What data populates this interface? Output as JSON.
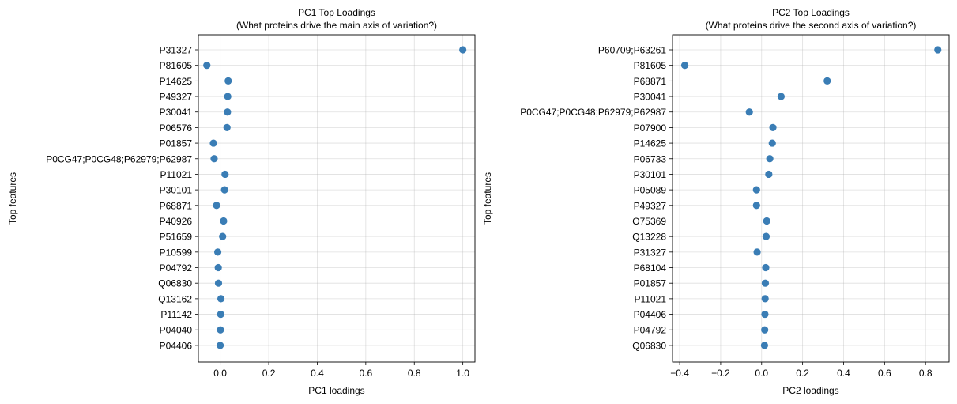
{
  "chart_data": [
    {
      "type": "scatter",
      "title": "PC1 Top Loadings",
      "subtitle": "(What proteins drive the main axis of variation?)",
      "xlabel": "PC1 loadings",
      "ylabel": "Top features",
      "xlim": [
        -0.09,
        1.05
      ],
      "xticks": [
        0.0,
        0.2,
        0.4,
        0.6,
        0.8,
        1.0
      ],
      "xtick_labels": [
        "0.0",
        "0.2",
        "0.4",
        "0.6",
        "0.8",
        "1.0"
      ],
      "grid": true,
      "marker_color": "#3a7db5",
      "categories": [
        "P31327",
        "P81605",
        "P14625",
        "P49327",
        "P30041",
        "P06576",
        "P01857",
        "P0CG47;P0CG48;P62979;P62987",
        "P11021",
        "P30101",
        "P68871",
        "P40926",
        "P51659",
        "P10599",
        "P04792",
        "Q06830",
        "Q13162",
        "P11142",
        "P04040",
        "P04406"
      ],
      "values": [
        1.0,
        -0.055,
        0.033,
        0.031,
        0.03,
        0.028,
        -0.028,
        -0.025,
        0.02,
        0.018,
        -0.015,
        0.014,
        0.01,
        -0.01,
        -0.008,
        -0.007,
        0.003,
        0.002,
        0.001,
        0.0
      ]
    },
    {
      "type": "scatter",
      "title": "PC2 Top Loadings",
      "subtitle": "(What proteins drive the second axis of variation?)",
      "xlabel": "PC2 loadings",
      "ylabel": "Top features",
      "xlim": [
        -0.435,
        0.915
      ],
      "xticks": [
        -0.4,
        -0.2,
        0.0,
        0.2,
        0.4,
        0.6,
        0.8
      ],
      "xtick_labels": [
        "−0.4",
        "−0.2",
        "0.0",
        "0.2",
        "0.4",
        "0.6",
        "0.8"
      ],
      "grid": true,
      "marker_color": "#3a7db5",
      "categories": [
        "P60709;P63261",
        "P81605",
        "P68871",
        "P30041",
        "P0CG47;P0CG48;P62979;P62987",
        "P07900",
        "P14625",
        "P06733",
        "P30101",
        "P05089",
        "P49327",
        "O75369",
        "Q13228",
        "P31327",
        "P68104",
        "P01857",
        "P11021",
        "P04406",
        "P04792",
        "Q06830"
      ],
      "values": [
        0.86,
        -0.375,
        0.32,
        0.095,
        -0.06,
        0.055,
        0.052,
        0.04,
        0.035,
        -0.025,
        -0.025,
        0.025,
        0.022,
        -0.022,
        0.02,
        0.018,
        0.017,
        0.016,
        0.015,
        0.014
      ]
    }
  ]
}
